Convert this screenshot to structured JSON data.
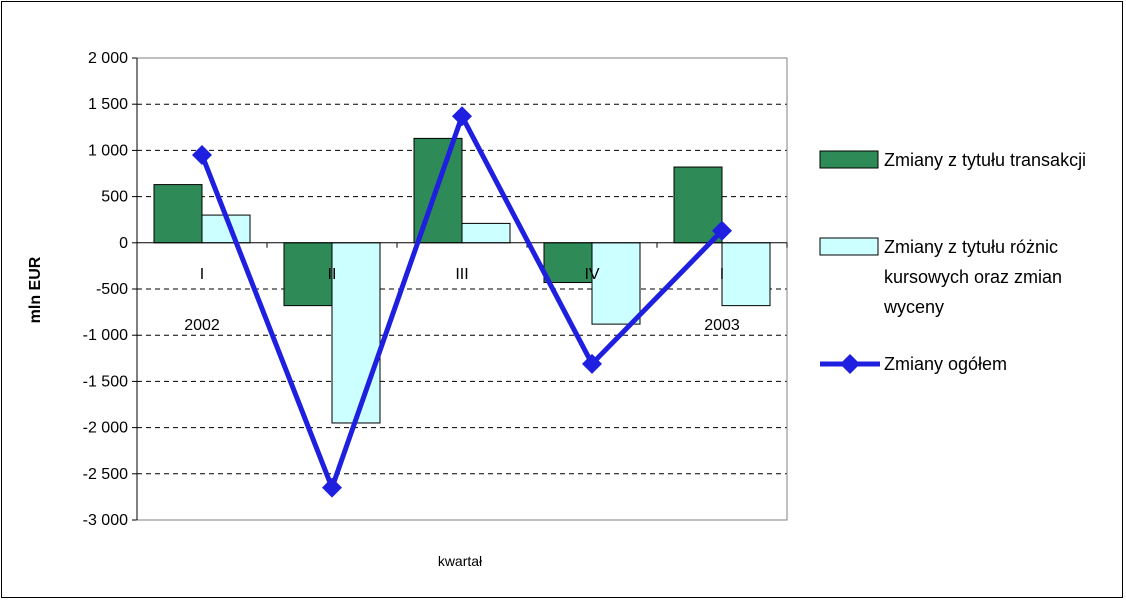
{
  "chart_data": {
    "type": "bar",
    "title": "",
    "ylabel": "mln EUR",
    "xlabel": "kwartał",
    "ylim": [
      -3000,
      2000
    ],
    "yticks": [
      2000,
      1500,
      1000,
      500,
      0,
      -500,
      -1000,
      -1500,
      -2000,
      -2500,
      -3000
    ],
    "ytick_labels": [
      "2 000",
      "1 500",
      "1 000",
      "500",
      "0",
      "-500",
      "-1 000",
      "-1 500",
      "-2 000",
      "-2 500",
      "-3 000"
    ],
    "grid": "horizontal dashed",
    "categories": [
      "I",
      "II",
      "III",
      "IV",
      "I"
    ],
    "year_labels": [
      {
        "category_index": 0,
        "text": "2002"
      },
      {
        "category_index": 4,
        "text": "2003"
      }
    ],
    "legend_position": "right",
    "series": [
      {
        "name": "Zmiany z tytułu transakcji",
        "kind": "bar",
        "color": "#2e8b57",
        "values": [
          630,
          -680,
          1130,
          -430,
          820
        ]
      },
      {
        "name": "Zmiany z tytułu różnic kursowych oraz zmian wyceny",
        "kind": "bar",
        "color": "#ccffff",
        "values": [
          300,
          -1950,
          210,
          -880,
          -680
        ]
      },
      {
        "name": "Zmiany ogółem",
        "kind": "line",
        "color": "#1f1fe0",
        "marker": "diamond",
        "values": [
          950,
          -2650,
          1370,
          -1310,
          130
        ]
      }
    ],
    "legend_lines": [
      [
        "Zmiany z tytułu transakcji"
      ],
      [
        "Zmiany z tytułu różnic",
        "kursowych oraz zmian",
        "wyceny"
      ],
      [
        "Zmiany ogółem"
      ]
    ]
  }
}
